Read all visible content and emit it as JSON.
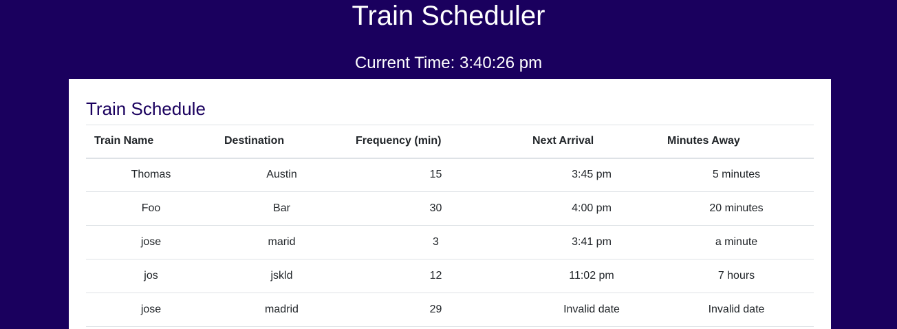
{
  "page": {
    "title": "Train Scheduler",
    "current_time_label": "Current Time: 3:40:26 pm"
  },
  "schedule": {
    "title": "Train Schedule",
    "title_color": "#1a005e",
    "columns": [
      "Train Name",
      "Destination",
      "Frequency (min)",
      "Next Arrival",
      "Minutes Away"
    ],
    "rows": [
      [
        "Thomas",
        "Austin",
        "15",
        "3:45 pm",
        "5 minutes"
      ],
      [
        "Foo",
        "Bar",
        "30",
        "4:00 pm",
        "20 minutes"
      ],
      [
        "jose",
        "marid",
        "3",
        "3:41 pm",
        "a minute"
      ],
      [
        "jos",
        "jskld",
        "12",
        "11:02 pm",
        "7 hours"
      ],
      [
        "jose",
        "madrid",
        "29",
        "Invalid date",
        "Invalid date"
      ]
    ]
  },
  "colors": {
    "background": "#1a005e",
    "panel": "#ffffff"
  }
}
